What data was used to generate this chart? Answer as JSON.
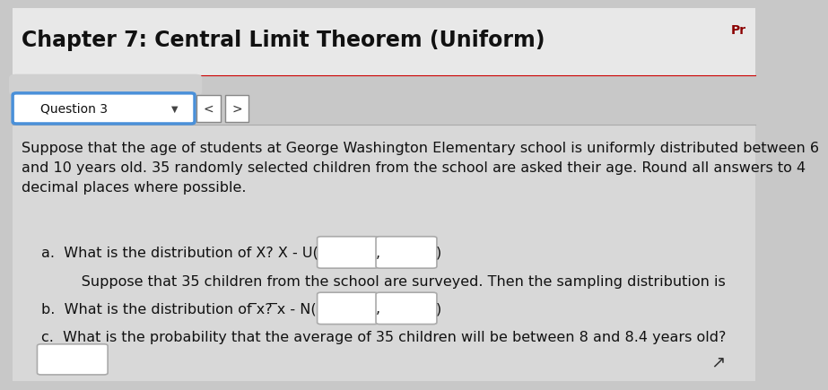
{
  "title": "Chapter 7: Central Limit Theorem (Uniform)",
  "title_fontsize": 17,
  "top_right_text": "Pr",
  "top_right_color": "#8b0000",
  "bg_color": "#c8c8c8",
  "header_bg": "#e0e0e0",
  "content_bg": "#e8e8e8",
  "question_label": "Question 3",
  "paragraph": "Suppose that the age of students at George Washington Elementary school is uniformly distributed between 6\nand 10 years old. 35 randomly selected children from the school are asked their age. Round all answers to 4\ndecimal places where possible.",
  "line_a_prefix": "a.  What is the distribution of X? X - U(",
  "line_between": "      Suppose that 35 children from the school are surveyed. Then the sampling distribution is",
  "line_b_prefix": "b.  What is the distribution of ̅x? ̅x - N(",
  "line_c": "c.  What is the probability that the average of 35 children will be between 8 and 8.4 years old?",
  "font_size_body": 11.5,
  "font_size_title": 17,
  "box_fill": "#ffffff",
  "box_edge": "#aaaaaa",
  "blue_border": "#4a90d9",
  "dot_color": "#111111",
  "white": "#ffffff",
  "dark_text": "#111111",
  "separator_color": "#aaaaaa",
  "redact_color": "#d0d0d0"
}
